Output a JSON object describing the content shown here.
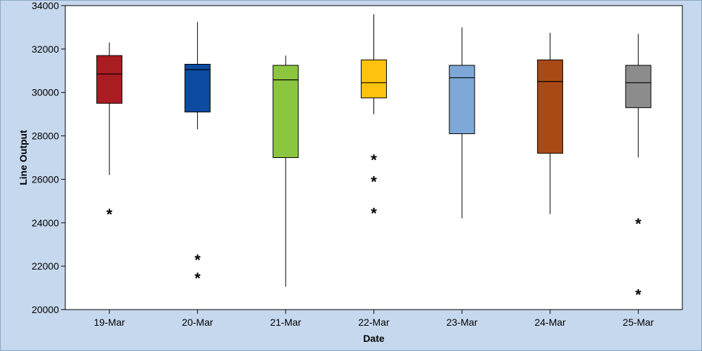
{
  "chart_data": {
    "type": "boxplot",
    "title": "",
    "xlabel": "Date",
    "ylabel": "Line Output",
    "ylim": [
      20000,
      34000
    ],
    "yticks": [
      20000,
      22000,
      24000,
      26000,
      28000,
      30000,
      32000,
      34000
    ],
    "grid": false,
    "legend": "none",
    "outlier_marker": "*",
    "categories": [
      "19-Mar",
      "20-Mar",
      "21-Mar",
      "22-Mar",
      "23-Mar",
      "24-Mar",
      "25-Mar"
    ],
    "boxes": [
      {
        "category": "19-Mar",
        "color": "#a81c22",
        "whisker_low": 26200,
        "q1": 29500,
        "median": 30850,
        "q3": 31700,
        "whisker_high": 32300,
        "outliers": [
          24500
        ]
      },
      {
        "category": "20-Mar",
        "color": "#0d4ba0",
        "whisker_low": 28300,
        "q1": 29100,
        "median": 31050,
        "q3": 31300,
        "whisker_high": 33250,
        "outliers": [
          22400,
          21550
        ]
      },
      {
        "category": "21-Mar",
        "color": "#8cc63f",
        "whisker_low": 21050,
        "q1": 27000,
        "median": 30580,
        "q3": 31250,
        "whisker_high": 31700,
        "outliers": []
      },
      {
        "category": "22-Mar",
        "color": "#ffc20e",
        "whisker_low": 29000,
        "q1": 29750,
        "median": 30450,
        "q3": 31500,
        "whisker_high": 33600,
        "outliers": [
          27000,
          26000,
          24550
        ]
      },
      {
        "category": "23-Mar",
        "color": "#7ea8d8",
        "whisker_low": 24200,
        "q1": 28100,
        "median": 30680,
        "q3": 31250,
        "whisker_high": 33000,
        "outliers": []
      },
      {
        "category": "24-Mar",
        "color": "#a94a16",
        "whisker_low": 24400,
        "q1": 27200,
        "median": 30500,
        "q3": 31500,
        "whisker_high": 32750,
        "outliers": []
      },
      {
        "category": "25-Mar",
        "color": "#8c8c8c",
        "whisker_low": 27000,
        "q1": 29300,
        "median": 30450,
        "q3": 31250,
        "whisker_high": 32700,
        "outliers": [
          24050,
          20800
        ]
      }
    ]
  }
}
